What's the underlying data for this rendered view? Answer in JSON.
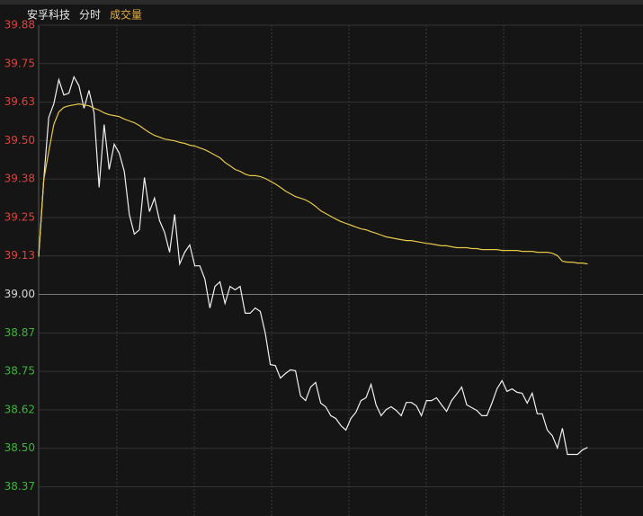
{
  "chart_data": {
    "type": "line",
    "header": [
      "安孚科技",
      "分时",
      "成交量"
    ],
    "header_colors": [
      "#e8e8e8",
      "#e8e8e8",
      "#e8b040"
    ],
    "xlim": [
      0,
      240
    ],
    "ylim": [
      38.28,
      39.875
    ],
    "yticks": [
      {
        "value": 39.875,
        "label": "39.88"
      },
      39.75,
      {
        "value": 39.625,
        "label": "39.63"
      },
      {
        "value": 39.5,
        "label": "39.50"
      },
      {
        "value": 39.375,
        "label": "39.38"
      },
      39.25,
      {
        "value": 39.125,
        "label": "39.13"
      },
      {
        "value": 39,
        "label": "39.00"
      },
      {
        "value": 38.875,
        "label": "38.87"
      },
      38.75,
      {
        "value": 38.625,
        "label": "38.62"
      },
      {
        "value": 38.5,
        "label": "38.50"
      },
      {
        "value": 38.375,
        "label": "38.37"
      }
    ],
    "prev_close": 39,
    "up_color": "#e0403c",
    "down_color": "#3cb43c",
    "flat_color": "#d8d8d8",
    "grid": true,
    "x": [
      0,
      2,
      4,
      6,
      8,
      10,
      12,
      14,
      16,
      18,
      20,
      22,
      24,
      26,
      28,
      30,
      32,
      34,
      36,
      38,
      40,
      42,
      44,
      46,
      48,
      50,
      52,
      54,
      56,
      58,
      60,
      62,
      64,
      66,
      68,
      70,
      72,
      74,
      76,
      78,
      80,
      82,
      84,
      86,
      88,
      90,
      92,
      94,
      96,
      98,
      100,
      102,
      104,
      106,
      108,
      110,
      112,
      114,
      116,
      118,
      120,
      122,
      124,
      126,
      128,
      130,
      132,
      134,
      136,
      138,
      140,
      142,
      144,
      146,
      148,
      150,
      152,
      154,
      156,
      158,
      160,
      162,
      164,
      166,
      168,
      170,
      172,
      174,
      176,
      178,
      180,
      182,
      184,
      186,
      188,
      190,
      192,
      194,
      196,
      198,
      200,
      202,
      204,
      206,
      208,
      210,
      212,
      214,
      216,
      218
    ],
    "series": [
      {
        "color": "#f0f0f0",
        "values": [
          39.123,
          39.371,
          39.575,
          39.619,
          39.698,
          39.648,
          39.654,
          39.707,
          39.678,
          39.605,
          39.663,
          39.59,
          39.348,
          39.552,
          39.406,
          39.488,
          39.459,
          39.4,
          39.26,
          39.196,
          39.21,
          39.38,
          39.269,
          39.313,
          39.24,
          39.202,
          39.137,
          39.26,
          39.099,
          39.137,
          39.161,
          39.093,
          39.093,
          39.05,
          38.956,
          39.026,
          39.041,
          38.971,
          39.026,
          39.015,
          39.026,
          38.939,
          38.939,
          38.956,
          38.945,
          38.874,
          38.772,
          38.769,
          38.728,
          38.743,
          38.755,
          38.752,
          38.67,
          38.655,
          38.699,
          38.714,
          38.647,
          38.635,
          38.606,
          38.597,
          38.574,
          38.559,
          38.597,
          38.617,
          38.655,
          38.664,
          38.708,
          38.641,
          38.606,
          38.626,
          38.635,
          38.623,
          38.606,
          38.649,
          38.649,
          38.638,
          38.606,
          38.655,
          38.655,
          38.664,
          38.641,
          38.62,
          38.655,
          38.676,
          38.699,
          38.641,
          38.632,
          38.623,
          38.606,
          38.606,
          38.647,
          38.693,
          38.72,
          38.685,
          38.693,
          38.682,
          38.679,
          38.647,
          38.679,
          38.612,
          38.612,
          38.559,
          38.541,
          38.501,
          38.565,
          38.48,
          38.48,
          38.48,
          38.495,
          38.503
        ]
      },
      {
        "color": "#e6c84a",
        "values": [
          39.123,
          39.371,
          39.464,
          39.552,
          39.593,
          39.608,
          39.613,
          39.616,
          39.619,
          39.616,
          39.613,
          39.605,
          39.599,
          39.59,
          39.584,
          39.581,
          39.578,
          39.57,
          39.564,
          39.558,
          39.549,
          39.537,
          39.526,
          39.517,
          39.511,
          39.505,
          39.502,
          39.499,
          39.494,
          39.491,
          39.485,
          39.482,
          39.476,
          39.47,
          39.462,
          39.453,
          39.444,
          39.429,
          39.418,
          39.406,
          39.4,
          39.391,
          39.386,
          39.386,
          39.383,
          39.377,
          39.368,
          39.359,
          39.348,
          39.336,
          39.327,
          39.318,
          39.313,
          39.307,
          39.298,
          39.286,
          39.272,
          39.263,
          39.254,
          39.245,
          39.237,
          39.231,
          39.225,
          39.219,
          39.213,
          39.21,
          39.204,
          39.199,
          39.193,
          39.187,
          39.184,
          39.181,
          39.178,
          39.175,
          39.175,
          39.172,
          39.169,
          39.166,
          39.164,
          39.161,
          39.158,
          39.158,
          39.155,
          39.152,
          39.152,
          39.152,
          39.149,
          39.149,
          39.146,
          39.146,
          39.146,
          39.146,
          39.143,
          39.143,
          39.143,
          39.143,
          39.14,
          39.14,
          39.14,
          39.137,
          39.137,
          39.137,
          39.134,
          39.126,
          39.108,
          39.105,
          39.105,
          39.102,
          39.102,
          39.099
        ]
      }
    ]
  }
}
